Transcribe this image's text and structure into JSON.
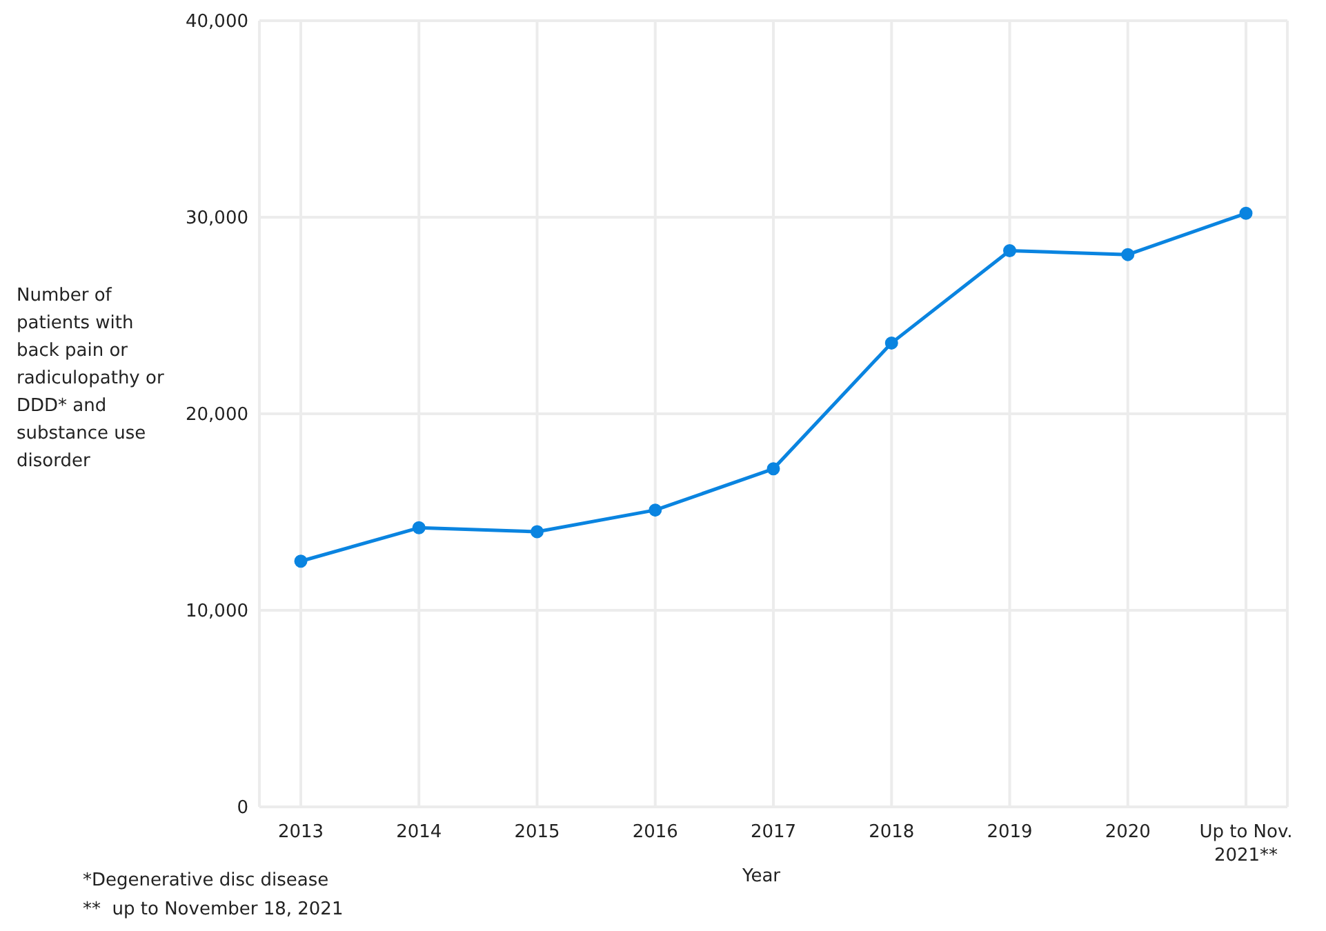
{
  "chart_data": {
    "type": "line",
    "xlabel": "Year",
    "ylabel": "Number of patients with back pain or radiculopathy or DDD* and substance use disorder",
    "categories": [
      "2013",
      "2014",
      "2015",
      "2016",
      "2017",
      "2018",
      "2019",
      "2020",
      "Up to Nov. 2021**"
    ],
    "series": [
      {
        "color": "#0a84e0",
        "values": [
          12500,
          14200,
          14000,
          15100,
          17200,
          23600,
          28300,
          28100,
          30200
        ]
      }
    ],
    "ylim": [
      0,
      40000
    ],
    "yticks": [
      {
        "value": 0,
        "label": "0"
      },
      {
        "value": 10000,
        "label": "10,000"
      },
      {
        "value": 20000,
        "label": "20,000"
      },
      {
        "value": 30000,
        "label": "30,000"
      },
      {
        "value": 40000,
        "label": "40,000"
      }
    ],
    "grid": true,
    "marker": "circle",
    "line_style": "solid",
    "annotations": [
      "*Degenerative disc disease",
      "**  up to November 18, 2021"
    ]
  }
}
